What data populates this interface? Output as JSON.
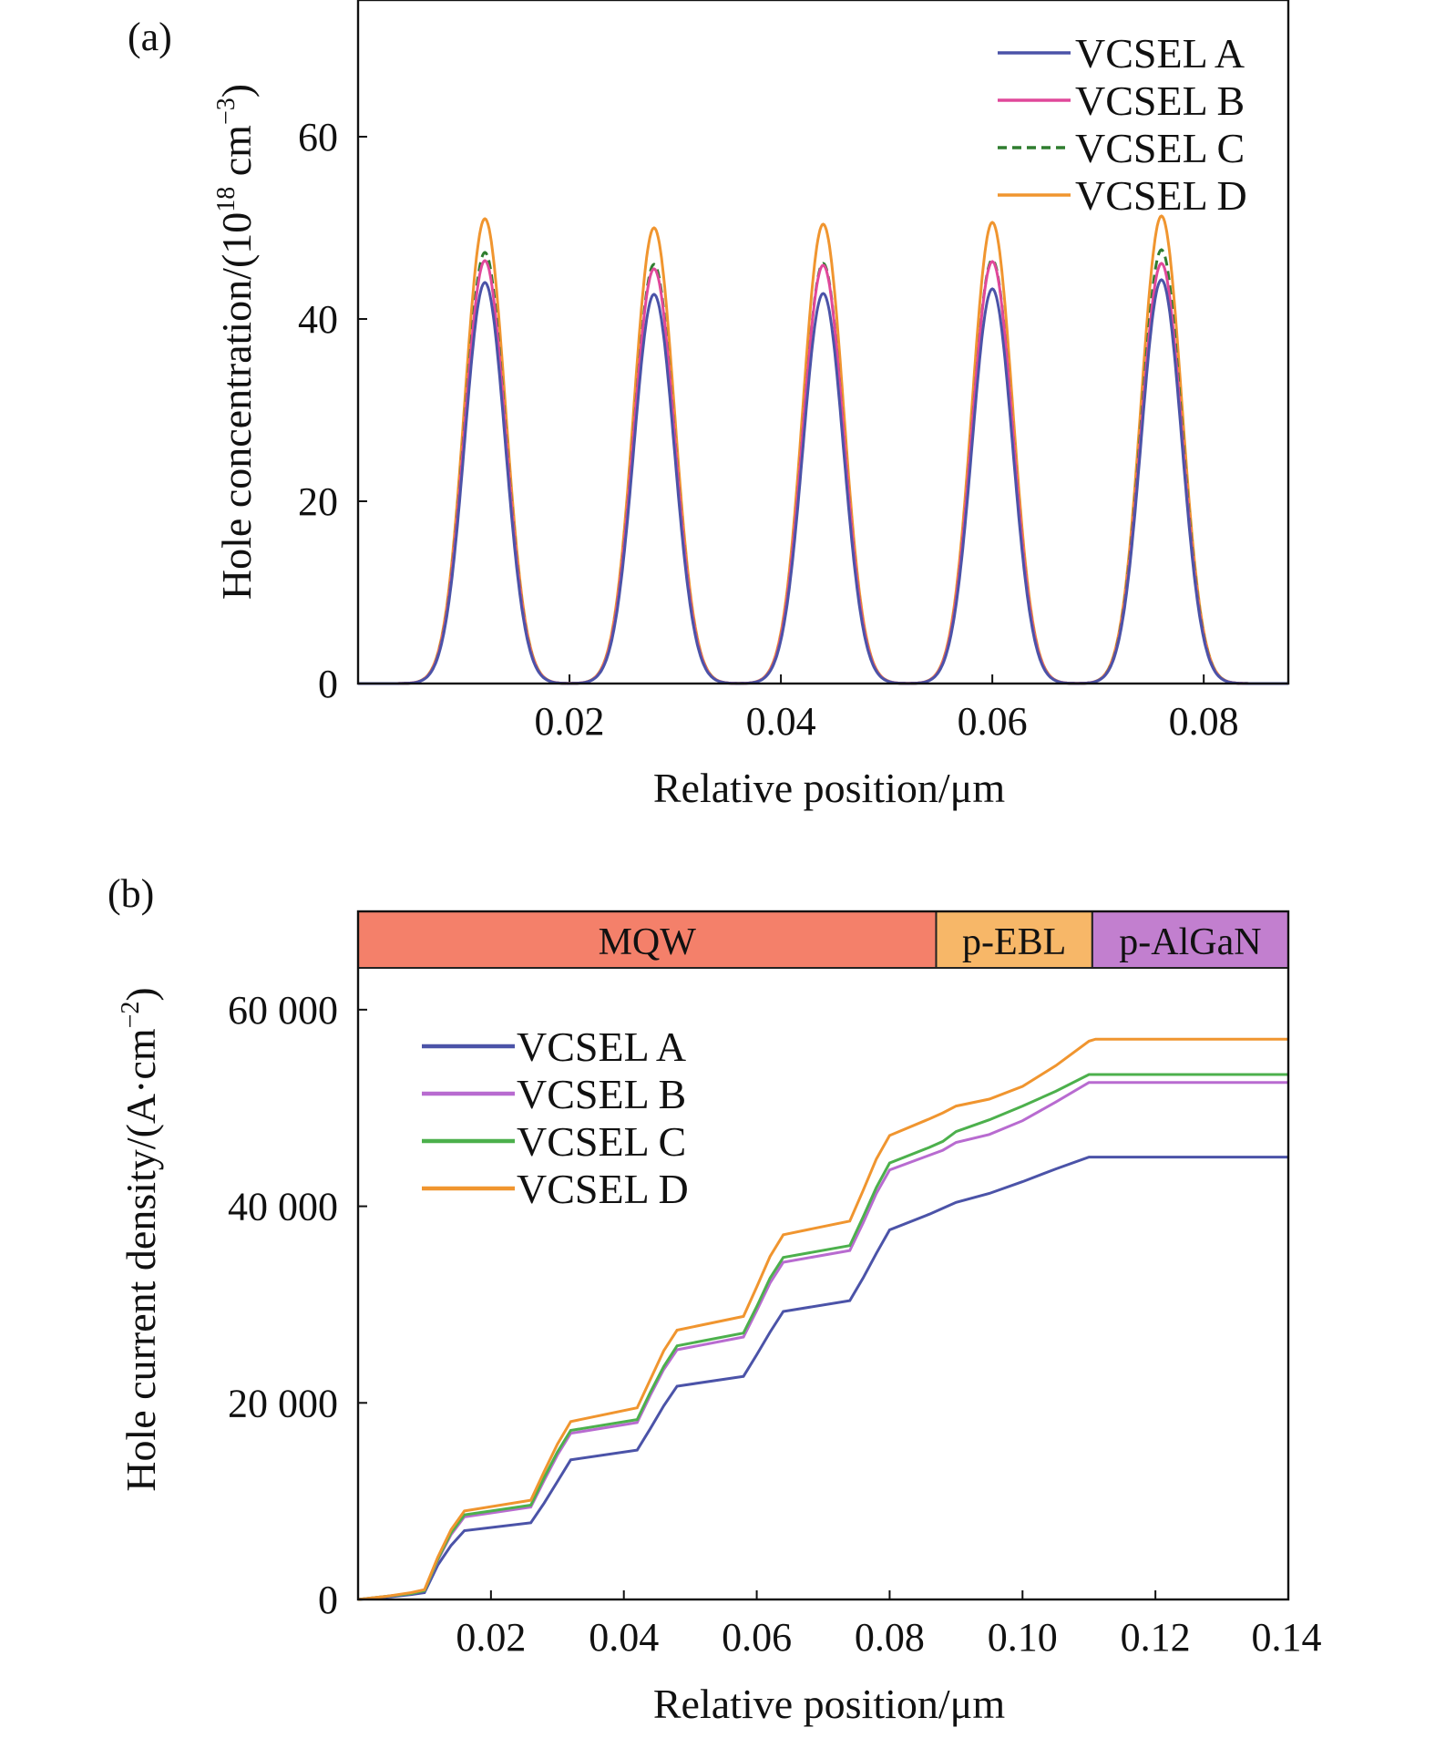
{
  "chart_data": [
    {
      "type": "line",
      "panel_label": "(a)",
      "xlabel": "Relative position/μm",
      "ylabel": "Hole concentration/(10",
      "ylabel_sup": "18",
      "ylabel_mid": " cm",
      "ylabel_sup2": "−3",
      "ylabel_end": ")",
      "xlim": [
        0.0,
        0.088
      ],
      "ylim": [
        0,
        75
      ],
      "xticks": [
        0.02,
        0.04,
        0.06,
        0.08
      ],
      "xtick_labels": [
        "0.02",
        "0.04",
        "0.06",
        "0.08"
      ],
      "yticks": [
        0,
        20,
        40,
        60
      ],
      "ytick_labels": [
        "0",
        "20",
        "40",
        "60"
      ],
      "legend_position": "top-right",
      "peak_centers": [
        0.012,
        0.028,
        0.044,
        0.06,
        0.076
      ],
      "peak_halfwidth": 0.0042,
      "series": [
        {
          "name": "VCSEL A",
          "color": "#4b53a8",
          "dash": "solid",
          "peaks": [
            44.0,
            42.7,
            42.8,
            43.3,
            44.3
          ]
        },
        {
          "name": "VCSEL B",
          "color": "#e0489a",
          "dash": "solid",
          "peaks": [
            46.4,
            45.5,
            45.9,
            46.3,
            46.1
          ]
        },
        {
          "name": "VCSEL C",
          "color": "#2f7d2f",
          "dash": "dashed",
          "peaks": [
            47.3,
            46.0,
            46.1,
            46.5,
            47.6
          ]
        },
        {
          "name": "VCSEL D",
          "color": "#f0952f",
          "dash": "solid",
          "peaks": [
            51.0,
            50.0,
            50.4,
            50.6,
            51.3
          ]
        }
      ]
    },
    {
      "type": "line",
      "panel_label": "(b)",
      "xlabel": "Relative position/μm",
      "ylabel": "Hole current density/(A·cm",
      "ylabel_sup": "−2",
      "ylabel_end": ")",
      "xlim": [
        0.0,
        0.14
      ],
      "ylim": [
        0,
        70000
      ],
      "xticks": [
        0.02,
        0.04,
        0.06,
        0.08,
        0.1,
        0.12,
        0.14
      ],
      "xtick_labels": [
        "0.02",
        "0.04",
        "0.06",
        "0.08",
        "0.10",
        "0.12",
        "0.14"
      ],
      "yticks": [
        0,
        20000,
        40000,
        60000
      ],
      "ytick_labels": [
        "0",
        "20 000",
        "40 000",
        "60 000"
      ],
      "legend_position": "upper-left",
      "regions": [
        {
          "label": "MQW",
          "start": 0.0,
          "end": 0.087,
          "color": "#f4806a"
        },
        {
          "label": "p-EBL",
          "start": 0.087,
          "end": 0.1105,
          "color": "#f7b768"
        },
        {
          "label": "p-AlGaN",
          "start": 0.1105,
          "end": 0.14,
          "color": "#c27fcf"
        }
      ],
      "x": [
        0.0,
        0.004,
        0.008,
        0.01,
        0.012,
        0.014,
        0.016,
        0.026,
        0.028,
        0.03,
        0.032,
        0.042,
        0.044,
        0.046,
        0.048,
        0.058,
        0.06,
        0.062,
        0.064,
        0.074,
        0.076,
        0.078,
        0.08,
        0.086,
        0.088,
        0.09,
        0.095,
        0.1,
        0.105,
        0.11,
        0.111,
        0.12,
        0.13,
        0.14
      ],
      "series": [
        {
          "name": "VCSEL A",
          "color": "#4b53a8",
          "values": [
            0,
            200,
            500,
            700,
            3500,
            5500,
            7000,
            7800,
            9800,
            12000,
            14200,
            15200,
            17400,
            19700,
            21700,
            22700,
            24900,
            27200,
            29300,
            30400,
            32700,
            35200,
            37600,
            39200,
            39800,
            40400,
            41300,
            42500,
            43800,
            45000,
            45000,
            45000,
            45000,
            45000
          ]
        },
        {
          "name": "VCSEL B",
          "color": "#b86bd0",
          "values": [
            0,
            300,
            600,
            900,
            4000,
            6600,
            8400,
            9400,
            12100,
            14700,
            16900,
            18000,
            20800,
            23400,
            25400,
            26700,
            29400,
            32200,
            34300,
            35500,
            38300,
            41300,
            43700,
            45200,
            45700,
            46500,
            47300,
            48700,
            50600,
            52600,
            52600,
            52600,
            52600,
            52600
          ]
        },
        {
          "name": "VCSEL C",
          "color": "#4cb04c",
          "values": [
            0,
            300,
            600,
            900,
            4100,
            6800,
            8600,
            9600,
            12400,
            15000,
            17200,
            18300,
            21100,
            23700,
            25800,
            27100,
            29800,
            32700,
            34800,
            36000,
            38900,
            41900,
            44400,
            46000,
            46600,
            47600,
            48800,
            50200,
            51700,
            53400,
            53400,
            53400,
            53400,
            53400
          ]
        },
        {
          "name": "VCSEL D",
          "color": "#f0952f",
          "values": [
            0,
            300,
            700,
            1000,
            4300,
            7100,
            9000,
            10100,
            13000,
            15800,
            18100,
            19500,
            22400,
            25300,
            27400,
            28800,
            31800,
            34900,
            37100,
            38500,
            41600,
            44800,
            47200,
            48900,
            49500,
            50200,
            50900,
            52200,
            54300,
            56800,
            57000,
            57000,
            57000,
            57000
          ]
        }
      ]
    }
  ]
}
